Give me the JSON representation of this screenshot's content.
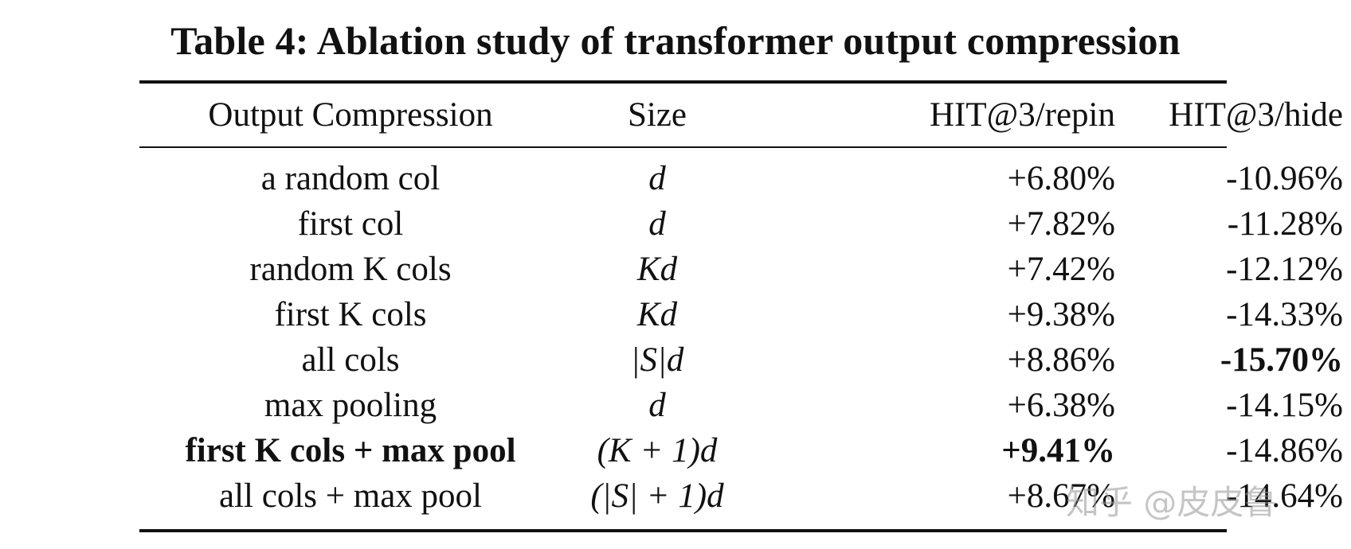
{
  "caption": "Table 4: Ablation study of transformer output compression",
  "headers": {
    "method": "Output Compression",
    "size": "Size",
    "repin": "HIT@3/repin",
    "hide": "HIT@3/hide"
  },
  "rows": [
    {
      "method": "a random col",
      "size": "d",
      "repin": "+6.80%",
      "hide": "-10.96%"
    },
    {
      "method": "first col",
      "size": "d",
      "repin": "+7.82%",
      "hide": "-11.28%"
    },
    {
      "method": "random K cols",
      "size": "Kd",
      "repin": "+7.42%",
      "hide": "-12.12%"
    },
    {
      "method": "first K cols",
      "size": "Kd",
      "repin": "+9.38%",
      "hide": "-14.33%"
    },
    {
      "method": "all cols",
      "size": "|S|d",
      "repin": "+8.86%",
      "hide": "-15.70%"
    },
    {
      "method": "max pooling",
      "size": "d",
      "repin": "+6.38%",
      "hide": "-14.15%"
    },
    {
      "method": "first K cols + max pool",
      "size": "(K + 1)d",
      "repin": "+9.41%",
      "hide": "-14.86%"
    },
    {
      "method": "all cols + max pool",
      "size": "(|S| + 1)d",
      "repin": "+8.67%",
      "hide": "-14.64%"
    }
  ],
  "watermark": "知乎 @皮皮鲁"
}
